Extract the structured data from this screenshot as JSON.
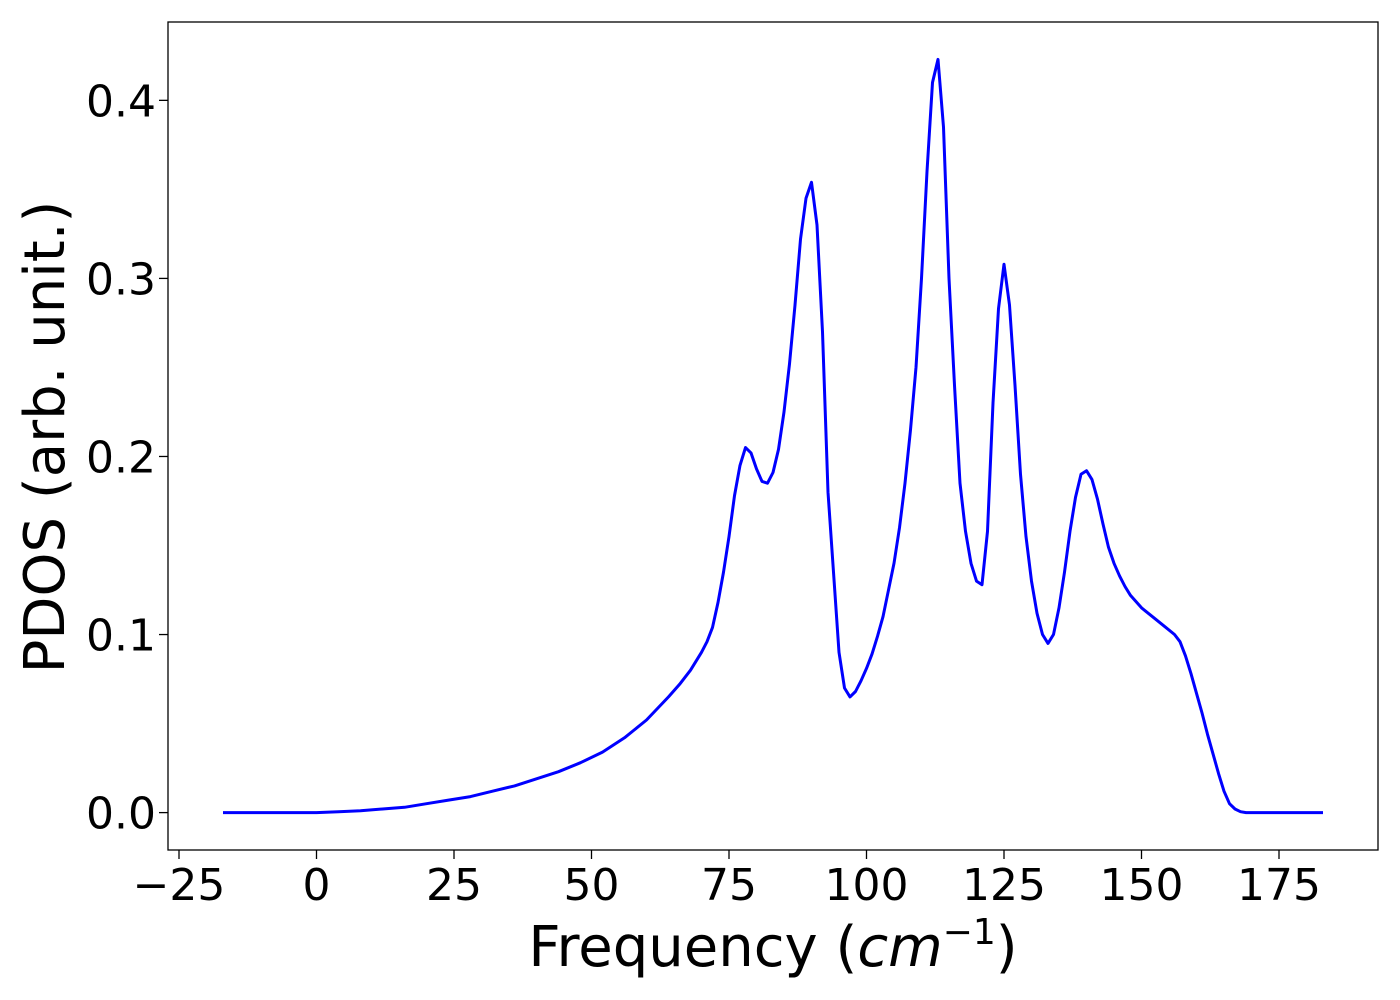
{
  "chart_data": {
    "type": "line",
    "title": "",
    "xlabel": "Frequency",
    "xlabel_unit": "cm",
    "xlabel_unit_exponent": "−1",
    "ylabel": "PDOS (arb. unit.)",
    "xlim": [
      -27,
      193
    ],
    "ylim": [
      -0.021,
      0.444
    ],
    "xticks": [
      -25,
      0,
      25,
      50,
      75,
      100,
      125,
      150,
      175
    ],
    "xtick_labels": [
      "−25",
      "0",
      "25",
      "50",
      "75",
      "100",
      "125",
      "150",
      "175"
    ],
    "yticks": [
      0.0,
      0.1,
      0.2,
      0.3,
      0.4
    ],
    "ytick_labels": [
      "0.0",
      "0.1",
      "0.2",
      "0.3",
      "0.4"
    ],
    "grid": false,
    "line_color": "#0000ff",
    "series": [
      {
        "x": [
          -17,
          -10,
          0,
          4,
          8,
          12,
          16,
          20,
          24,
          28,
          32,
          36,
          40,
          44,
          48,
          52,
          56,
          60,
          64,
          66,
          68,
          70,
          71,
          72,
          73,
          74,
          75,
          76,
          77,
          78,
          79,
          80,
          81,
          82,
          83,
          84,
          85,
          86,
          87,
          88,
          89,
          90,
          91,
          92,
          93,
          94,
          95,
          96,
          97,
          98,
          99,
          100,
          101,
          102,
          103,
          104,
          105,
          106,
          107,
          108,
          109,
          110,
          111,
          112,
          113,
          114,
          115,
          116,
          117,
          118,
          119,
          120,
          121,
          122,
          123,
          124,
          125,
          126,
          127,
          128,
          129,
          130,
          131,
          132,
          133,
          134,
          135,
          136,
          137,
          138,
          139,
          140,
          141,
          142,
          143,
          144,
          145,
          146,
          147,
          148,
          150,
          152,
          154,
          156,
          157,
          158,
          159,
          160,
          161,
          162,
          163,
          164,
          165,
          166,
          167,
          168,
          169,
          170,
          171,
          172,
          175,
          180,
          183
        ],
        "y": [
          0.0,
          0.0,
          0.0,
          0.0005,
          0.001,
          0.002,
          0.003,
          0.005,
          0.007,
          0.009,
          0.012,
          0.015,
          0.019,
          0.023,
          0.028,
          0.034,
          0.042,
          0.052,
          0.065,
          0.072,
          0.08,
          0.09,
          0.096,
          0.104,
          0.118,
          0.135,
          0.155,
          0.178,
          0.195,
          0.205,
          0.202,
          0.193,
          0.186,
          0.185,
          0.191,
          0.204,
          0.225,
          0.252,
          0.285,
          0.322,
          0.345,
          0.354,
          0.33,
          0.27,
          0.18,
          0.135,
          0.09,
          0.07,
          0.065,
          0.068,
          0.074,
          0.081,
          0.089,
          0.099,
          0.11,
          0.125,
          0.14,
          0.16,
          0.185,
          0.215,
          0.25,
          0.3,
          0.36,
          0.41,
          0.423,
          0.385,
          0.3,
          0.24,
          0.185,
          0.158,
          0.14,
          0.13,
          0.128,
          0.158,
          0.23,
          0.283,
          0.308,
          0.285,
          0.24,
          0.19,
          0.155,
          0.13,
          0.112,
          0.1,
          0.095,
          0.1,
          0.115,
          0.135,
          0.158,
          0.177,
          0.19,
          0.192,
          0.187,
          0.176,
          0.162,
          0.149,
          0.14,
          0.133,
          0.127,
          0.122,
          0.115,
          0.11,
          0.105,
          0.1,
          0.096,
          0.088,
          0.078,
          0.067,
          0.056,
          0.044,
          0.033,
          0.022,
          0.012,
          0.005,
          0.002,
          0.0005,
          0.0,
          0.0,
          0.0,
          0.0,
          0.0,
          0.0,
          0.0
        ]
      }
    ]
  }
}
